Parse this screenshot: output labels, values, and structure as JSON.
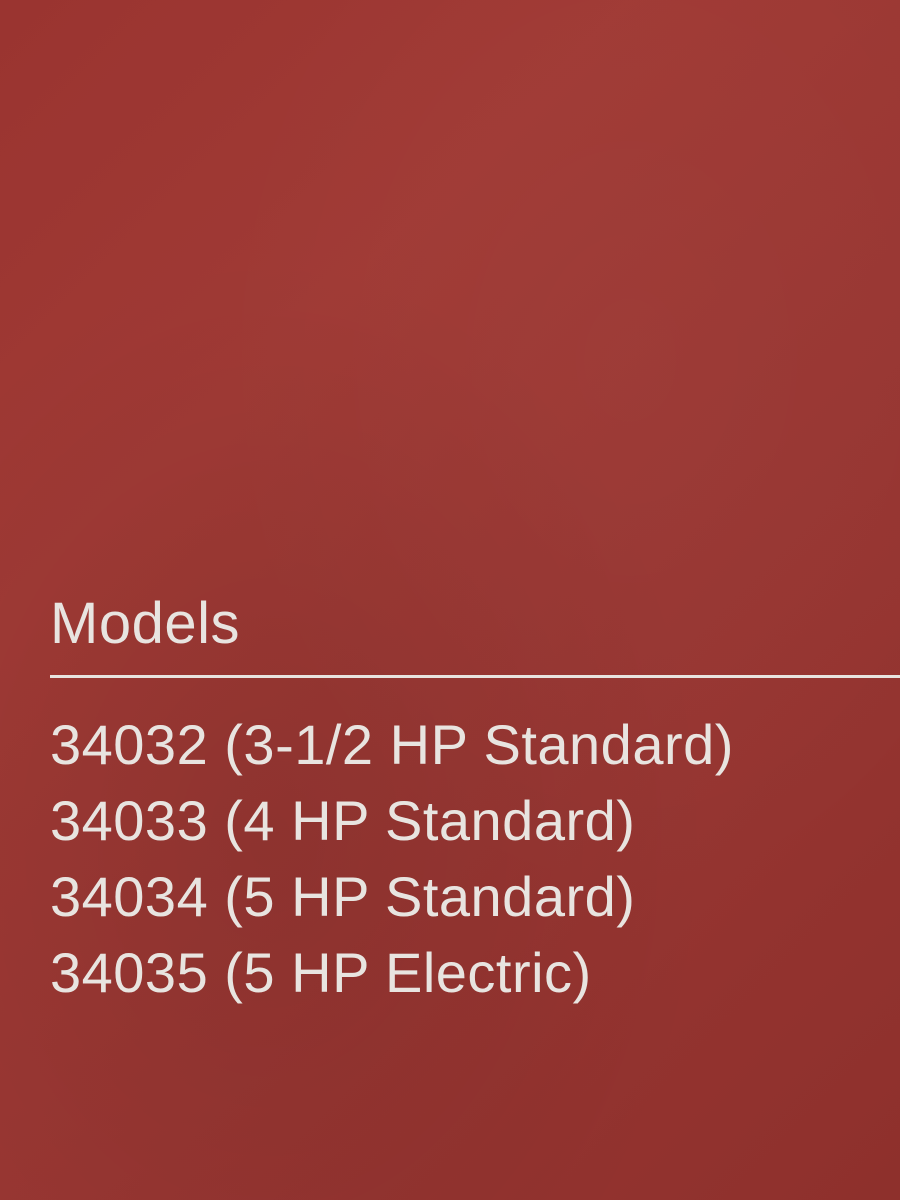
{
  "document": {
    "heading": "Models",
    "background_color": "#9a3430",
    "text_color": "#e8e4e0",
    "heading_fontsize": 58,
    "body_fontsize": 56,
    "divider_color": "#e8e4e0",
    "divider_thickness": 3,
    "models": [
      "34032 (3-1/2 HP Standard)",
      "34033 (4 HP Standard)",
      "34034 (5 HP Standard)",
      "34035 (5 HP Electric)"
    ]
  }
}
